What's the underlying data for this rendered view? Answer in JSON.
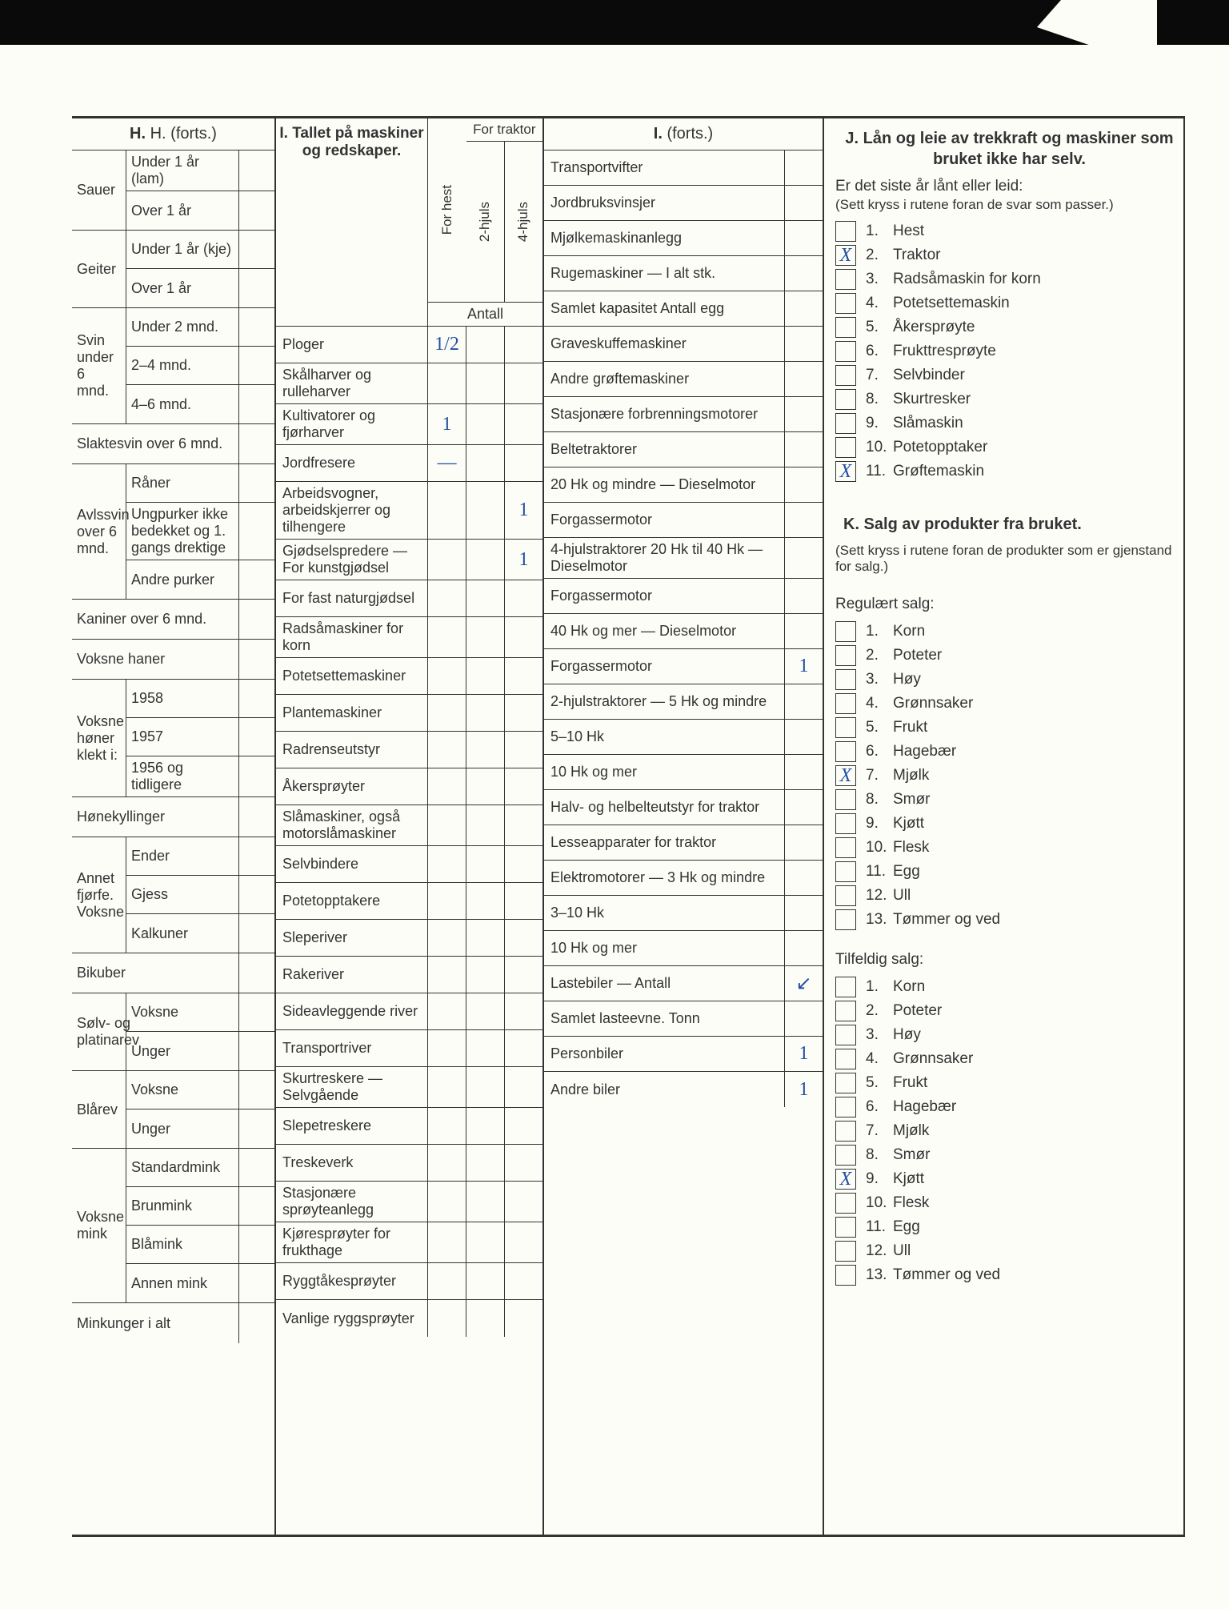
{
  "sectionH": {
    "title": "H. (forts.)",
    "groups": [
      {
        "label": "Sauer",
        "rows": [
          "Under 1 år (lam)",
          "Over 1 år"
        ]
      },
      {
        "label": "Geiter",
        "rows": [
          "Under 1 år (kje)",
          "Over 1 år"
        ]
      },
      {
        "label": "Svin under 6 mnd.",
        "rows": [
          "Under 2 mnd.",
          "2–4 mnd.",
          "4–6 mnd."
        ]
      },
      {
        "label": "Slaktesvin over 6 mnd.",
        "rows": []
      },
      {
        "label": "Avlssvin over 6 mnd.",
        "rows": [
          "Råner",
          "Ungpurker ikke bedekket og 1. gangs drektige",
          "Andre purker"
        ]
      },
      {
        "label": "Kaniner over 6 mnd.",
        "rows": []
      },
      {
        "label": "Voksne haner",
        "rows": []
      },
      {
        "label": "Voksne høner klekt i:",
        "rows": [
          "1958",
          "1957",
          "1956 og tidligere"
        ]
      },
      {
        "label": "Hønekyllinger",
        "rows": []
      },
      {
        "label": "Annet fjørfe. Voksne",
        "rows": [
          "Ender",
          "Gjess",
          "Kalkuner"
        ]
      },
      {
        "label": "Bikuber",
        "rows": []
      },
      {
        "label": "Sølv- og platinarev",
        "rows": [
          "Voksne",
          "Unger"
        ]
      },
      {
        "label": "Blårev",
        "rows": [
          "Voksne",
          "Unger"
        ]
      },
      {
        "label": "Voksne mink",
        "rows": [
          "Standardmink",
          "Brunmink",
          "Blåmink",
          "Annen mink"
        ]
      },
      {
        "label": "Minkunger i alt",
        "rows": []
      }
    ]
  },
  "sectionI": {
    "title": "I. Tallet på maskiner og redskaper.",
    "headers": {
      "forhest": "For hest",
      "fortraktor": "For traktor",
      "tohjuls": "2-hjuls",
      "firehjuls": "4-hjuls",
      "antall": "Antall"
    },
    "rows": [
      {
        "label": "Ploger",
        "v": [
          "1/2",
          "",
          ""
        ]
      },
      {
        "label": "Skålharver og rulleharver",
        "v": [
          "",
          "",
          ""
        ]
      },
      {
        "label": "Kultivatorer og fjørharver",
        "v": [
          "1",
          "",
          ""
        ]
      },
      {
        "label": "Jordfresere",
        "v": [
          "—",
          "",
          ""
        ]
      },
      {
        "label": "Arbeidsvogner, arbeidskjerrer og tilhengere",
        "v": [
          "",
          "",
          "1"
        ]
      },
      {
        "label": "Gjødselspredere — For kunstgjødsel",
        "sub": true,
        "v": [
          "",
          "",
          "1"
        ]
      },
      {
        "label": "For fast naturgjødsel",
        "sub": true,
        "v": [
          "",
          "",
          ""
        ]
      },
      {
        "label": "Radsåmaskiner for korn",
        "v": [
          "",
          "",
          ""
        ]
      },
      {
        "label": "Potetsettemaskiner",
        "v": [
          "",
          "",
          ""
        ]
      },
      {
        "label": "Plantemaskiner",
        "v": [
          "",
          "",
          ""
        ]
      },
      {
        "label": "Radrenseutstyr",
        "v": [
          "",
          "",
          ""
        ]
      },
      {
        "label": "Åkersprøyter",
        "v": [
          "",
          "",
          ""
        ]
      },
      {
        "label": "Slåmaskiner, også motorslåmaskiner",
        "v": [
          "",
          "",
          ""
        ]
      },
      {
        "label": "Selvbindere",
        "v": [
          "",
          "",
          ""
        ]
      },
      {
        "label": "Potetopptakere",
        "v": [
          "",
          "",
          ""
        ]
      },
      {
        "label": "Sleperiver",
        "v": [
          "",
          "",
          ""
        ]
      },
      {
        "label": "Rakeriver",
        "v": [
          "",
          "",
          ""
        ]
      },
      {
        "label": "Sideavleggende river",
        "v": [
          "",
          "",
          ""
        ]
      },
      {
        "label": "Transportriver",
        "v": [
          "",
          "",
          ""
        ]
      },
      {
        "label": "Skurtreskere — Selvgående",
        "sub": true,
        "v": [
          "",
          "",
          ""
        ]
      },
      {
        "label": "Slepetreskere",
        "sub": true,
        "v": [
          "",
          "",
          ""
        ]
      },
      {
        "label": "Treskeverk",
        "v": [
          "",
          "",
          ""
        ]
      },
      {
        "label": "Stasjonære sprøyteanlegg",
        "v": [
          "",
          "",
          ""
        ]
      },
      {
        "label": "Kjøresprøyter for frukthage",
        "v": [
          "",
          "",
          ""
        ]
      },
      {
        "label": "Ryggtåkesprøyter",
        "v": [
          "",
          "",
          ""
        ]
      },
      {
        "label": "Vanlige ryggsprøyter",
        "v": [
          "",
          "",
          ""
        ]
      }
    ]
  },
  "sectionI2": {
    "title": "I. (forts.)",
    "rows": [
      {
        "label": "Transportvifter",
        "v": ""
      },
      {
        "label": "Jordbruksvinsjer",
        "v": ""
      },
      {
        "label": "Mjølkemaskinanlegg",
        "v": ""
      },
      {
        "label": "Rugemaskiner — I alt stk.",
        "v": ""
      },
      {
        "label": "Samlet kapasitet Antall egg",
        "v": ""
      },
      {
        "label": "Graveskuffemaskiner",
        "v": ""
      },
      {
        "label": "Andre grøftemaskiner",
        "v": ""
      },
      {
        "label": "Stasjonære forbrenningsmotorer",
        "v": ""
      },
      {
        "label": "Beltetraktorer",
        "v": ""
      },
      {
        "label": "20 Hk og mindre — Dieselmotor",
        "v": ""
      },
      {
        "label": "Forgassermotor",
        "v": ""
      },
      {
        "label": "4-hjulstraktorer 20 Hk til 40 Hk — Dieselmotor",
        "v": ""
      },
      {
        "label": "Forgassermotor",
        "v": ""
      },
      {
        "label": "40 Hk og mer — Dieselmotor",
        "v": ""
      },
      {
        "label": "Forgassermotor",
        "v": "1"
      },
      {
        "label": "2-hjulstraktorer — 5 Hk og mindre",
        "v": ""
      },
      {
        "label": "5–10 Hk",
        "v": ""
      },
      {
        "label": "10 Hk og mer",
        "v": ""
      },
      {
        "label": "Halv- og helbelteutstyr for traktor",
        "v": ""
      },
      {
        "label": "Lesseapparater for traktor",
        "v": ""
      },
      {
        "label": "Elektromotorer — 3 Hk og mindre",
        "v": ""
      },
      {
        "label": "3–10 Hk",
        "v": ""
      },
      {
        "label": "10 Hk og mer",
        "v": ""
      },
      {
        "label": "Lastebiler — Antall",
        "v": "↙"
      },
      {
        "label": "Samlet lasteevne. Tonn",
        "v": ""
      },
      {
        "label": "Personbiler",
        "v": "1"
      },
      {
        "label": "Andre biler",
        "v": "1"
      }
    ]
  },
  "sectionJ": {
    "title": "J. Lån og leie av trekkraft og maskiner som bruket ikke har selv.",
    "subtitle": "Er det siste år lånt eller leid:",
    "note": "(Sett kryss i rutene foran de svar som passer.)",
    "items": [
      {
        "n": "1.",
        "label": "Hest",
        "x": ""
      },
      {
        "n": "2.",
        "label": "Traktor",
        "x": "X"
      },
      {
        "n": "3.",
        "label": "Radsåmaskin for korn",
        "x": ""
      },
      {
        "n": "4.",
        "label": "Potetsettemaskin",
        "x": ""
      },
      {
        "n": "5.",
        "label": "Åkersprøyte",
        "x": ""
      },
      {
        "n": "6.",
        "label": "Frukttresprøyte",
        "x": ""
      },
      {
        "n": "7.",
        "label": "Selvbinder",
        "x": ""
      },
      {
        "n": "8.",
        "label": "Skurtresker",
        "x": ""
      },
      {
        "n": "9.",
        "label": "Slåmaskin",
        "x": ""
      },
      {
        "n": "10.",
        "label": "Potetopptaker",
        "x": ""
      },
      {
        "n": "11.",
        "label": "Grøftemaskin",
        "x": "X"
      }
    ]
  },
  "sectionK": {
    "title": "K. Salg av produkter fra bruket.",
    "note": "(Sett kryss i rutene foran de produkter som er gjenstand for salg.)",
    "reg_label": "Regulært salg:",
    "tilf_label": "Tilfeldig salg:",
    "reg": [
      {
        "n": "1.",
        "label": "Korn",
        "x": ""
      },
      {
        "n": "2.",
        "label": "Poteter",
        "x": ""
      },
      {
        "n": "3.",
        "label": "Høy",
        "x": ""
      },
      {
        "n": "4.",
        "label": "Grønnsaker",
        "x": ""
      },
      {
        "n": "5.",
        "label": "Frukt",
        "x": ""
      },
      {
        "n": "6.",
        "label": "Hagebær",
        "x": ""
      },
      {
        "n": "7.",
        "label": "Mjølk",
        "x": "X"
      },
      {
        "n": "8.",
        "label": "Smør",
        "x": ""
      },
      {
        "n": "9.",
        "label": "Kjøtt",
        "x": ""
      },
      {
        "n": "10.",
        "label": "Flesk",
        "x": ""
      },
      {
        "n": "11.",
        "label": "Egg",
        "x": ""
      },
      {
        "n": "12.",
        "label": "Ull",
        "x": ""
      },
      {
        "n": "13.",
        "label": "Tømmer og ved",
        "x": ""
      }
    ],
    "tilf": [
      {
        "n": "1.",
        "label": "Korn",
        "x": ""
      },
      {
        "n": "2.",
        "label": "Poteter",
        "x": ""
      },
      {
        "n": "3.",
        "label": "Høy",
        "x": ""
      },
      {
        "n": "4.",
        "label": "Grønnsaker",
        "x": ""
      },
      {
        "n": "5.",
        "label": "Frukt",
        "x": ""
      },
      {
        "n": "6.",
        "label": "Hagebær",
        "x": ""
      },
      {
        "n": "7.",
        "label": "Mjølk",
        "x": ""
      },
      {
        "n": "8.",
        "label": "Smør",
        "x": ""
      },
      {
        "n": "9.",
        "label": "Kjøtt",
        "x": "X"
      },
      {
        "n": "10.",
        "label": "Flesk",
        "x": ""
      },
      {
        "n": "11.",
        "label": "Egg",
        "x": ""
      },
      {
        "n": "12.",
        "label": "Ull",
        "x": ""
      },
      {
        "n": "13.",
        "label": "Tømmer og ved",
        "x": ""
      }
    ]
  }
}
